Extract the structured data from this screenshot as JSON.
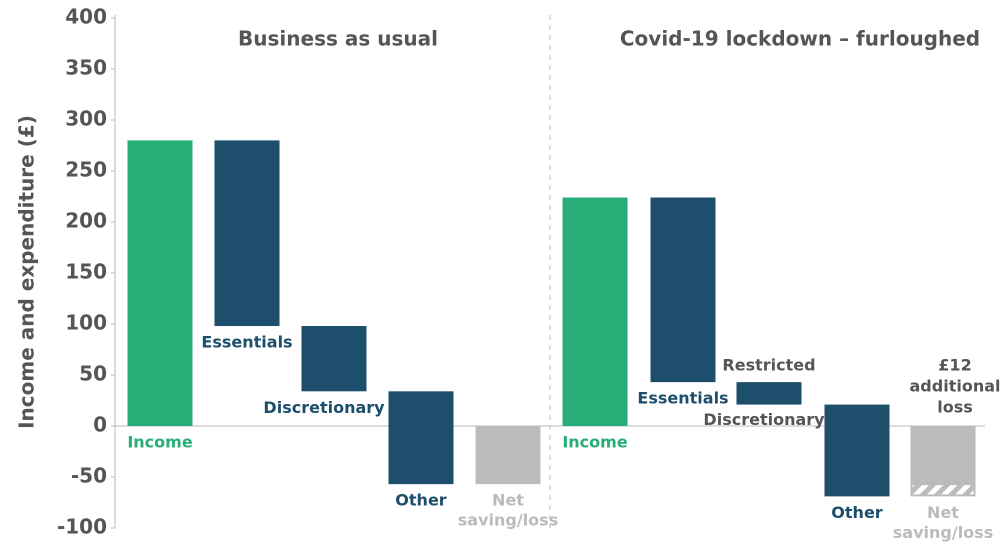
{
  "chart_data": [
    {
      "type": "waterfall",
      "title": "Business as usual",
      "y_label": "Income and expenditure (£)",
      "ylim": [
        -100,
        400
      ],
      "yticks": [
        -100,
        -50,
        0,
        50,
        100,
        150,
        200,
        250,
        300,
        350,
        400
      ],
      "categories": [
        [
          "Income"
        ],
        [
          "Essentials"
        ],
        [
          "Discretionary"
        ],
        [
          "Other"
        ],
        [
          "Net",
          "saving/loss"
        ]
      ],
      "values": [
        280,
        -182,
        -64,
        -91,
        -57
      ],
      "measure": [
        "relative",
        "relative",
        "relative",
        "relative",
        "total"
      ],
      "colors": [
        "#27ae78",
        "#1d4e6b",
        "#1d4e6b",
        "#1d4e6b",
        "#bbbbbb"
      ],
      "label_colors": [
        "#27ae78",
        "#1d4e6b",
        "#1d4e6b",
        "#1d4e6b",
        "#bbbbbb"
      ]
    },
    {
      "type": "waterfall",
      "title": "Covid-19 lockdown – furloughed",
      "categories": [
        [
          "Income"
        ],
        [
          "Essentials"
        ],
        [
          "Restricted",
          "Discretionary"
        ],
        [
          "Other"
        ],
        [
          "Net",
          "saving/loss"
        ]
      ],
      "values": [
        224,
        -181,
        -22,
        -90,
        -69
      ],
      "measure": [
        "relative",
        "relative",
        "relative",
        "relative",
        "total"
      ],
      "colors": [
        "#27ae78",
        "#1d4e6b",
        "#1d4e6b",
        "#1d4e6b",
        "#bbbbbb"
      ],
      "label_colors": [
        "#27ae78",
        "#1d4e6b",
        "#555555",
        "#1d4e6b",
        "#bbbbbb"
      ],
      "hatched_segment": 12,
      "annotation": [
        "£12",
        "additional",
        "loss"
      ]
    }
  ]
}
